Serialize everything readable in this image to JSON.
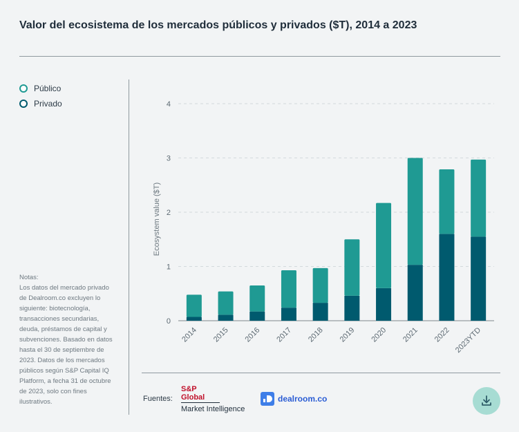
{
  "title": "Valor del ecosistema de los mercados públicos y privados ($T), 2014 a 2023",
  "legend": [
    {
      "label": "Público",
      "color": "#1f9a93"
    },
    {
      "label": "Privado",
      "color": "#005a6e"
    }
  ],
  "notes": {
    "title": "Notas:",
    "text": "Los datos del mercado privado de Dealroom.co excluyen lo siguiente: biotecnología, transacciones secundarias, deuda, préstamos de capital y subvenciones. Basado en datos hasta el 30 de septiembre de 2023. Datos de los mercados públicos según S&P Capital IQ Platform, a fecha 31 de octubre de 2023, solo con fines ilustrativos."
  },
  "sources": {
    "label": "Fuentes:",
    "sp_top": "S&P Global",
    "sp_bottom": "Market Intelligence",
    "dealroom": "dealroom.co"
  },
  "download_icon": "download-icon",
  "chart_data": {
    "type": "bar",
    "stacked": true,
    "categories": [
      "2014",
      "2015",
      "2016",
      "2017",
      "2018",
      "2019",
      "2020",
      "2021",
      "2022",
      "2023YTD"
    ],
    "series": [
      {
        "name": "Privado",
        "color": "#005a6e",
        "values": [
          0.07,
          0.11,
          0.17,
          0.24,
          0.33,
          0.46,
          0.6,
          1.03,
          1.6,
          1.55
        ]
      },
      {
        "name": "Público",
        "color": "#1f9a93",
        "values": [
          0.41,
          0.43,
          0.48,
          0.69,
          0.64,
          1.04,
          1.57,
          1.97,
          1.19,
          1.42
        ]
      }
    ],
    "ylabel": "Ecosystem value ($T)",
    "xlabel": "",
    "ylim": [
      0,
      4
    ],
    "yticks": [
      "0",
      "1",
      "2",
      "3",
      "4"
    ],
    "grid": true
  }
}
